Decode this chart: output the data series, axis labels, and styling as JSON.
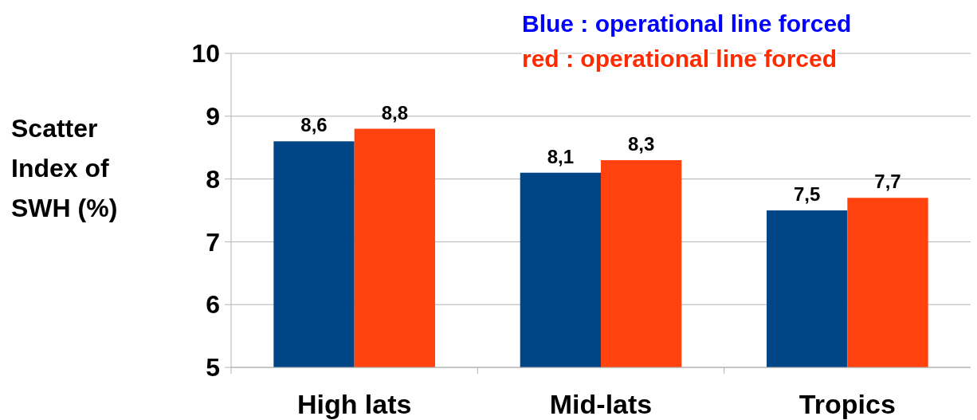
{
  "chart_data": {
    "type": "bar",
    "ylabel": "Scatter Index of SWH (%)",
    "categories": [
      "High lats",
      "Mid-lats",
      "Tropics"
    ],
    "series": [
      {
        "color": "#004586",
        "values": [
          8.6,
          8.1,
          7.5
        ],
        "value_labels": [
          "8,6",
          "8,1",
          "7,5"
        ]
      },
      {
        "color": "#ff420e",
        "values": [
          8.8,
          8.3,
          7.7
        ],
        "value_labels": [
          "8,8",
          "8,3",
          "7,7"
        ]
      }
    ],
    "annotations": [
      "Blue : operational line forced",
      "red : operational line forced"
    ],
    "ylim": [
      5,
      10
    ],
    "yticks": [
      5,
      6,
      7,
      8,
      9,
      10
    ],
    "grid": "y"
  }
}
